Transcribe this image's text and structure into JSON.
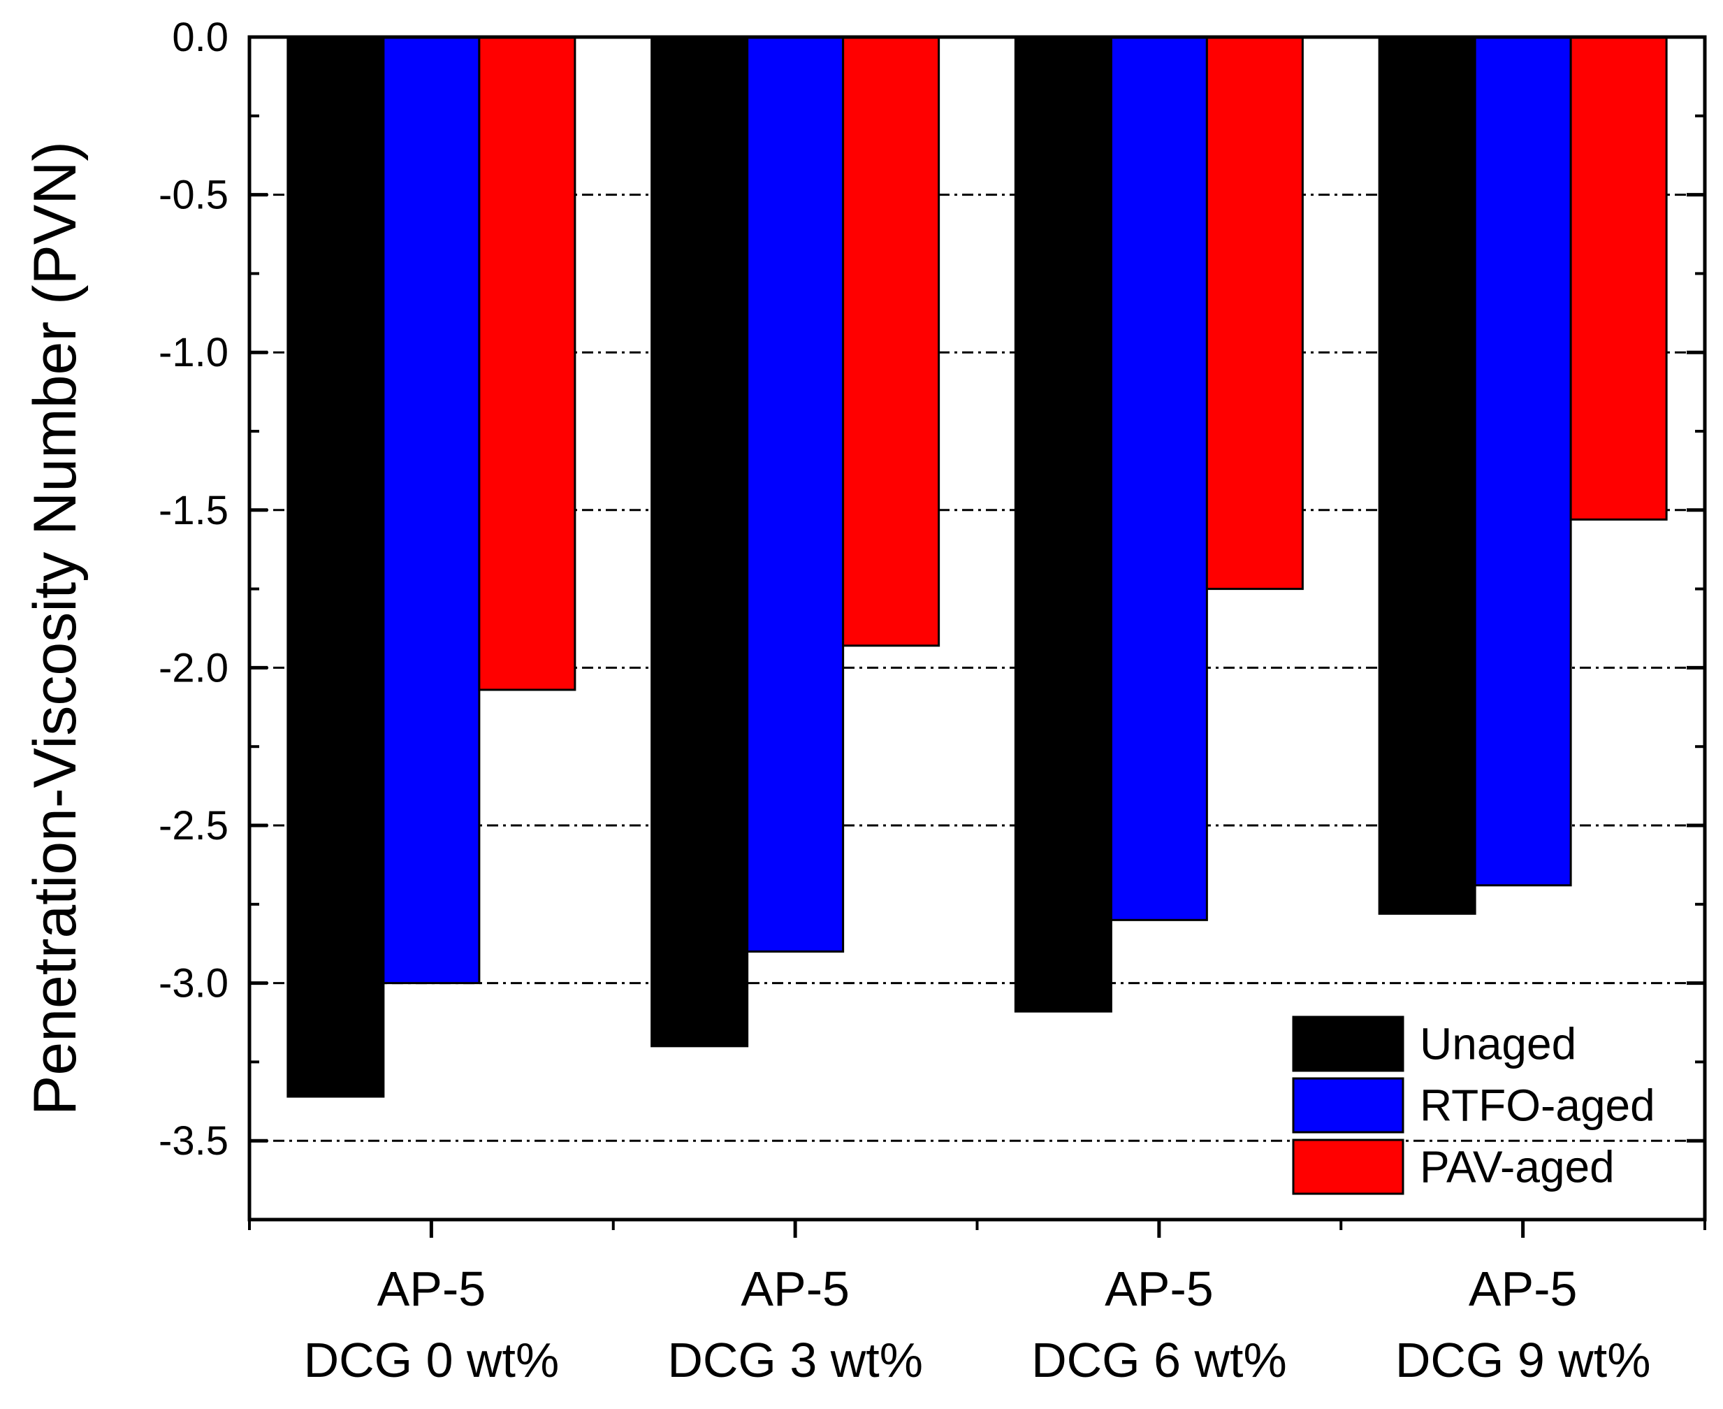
{
  "chart_data": {
    "type": "bar",
    "title": "",
    "xlabel": "",
    "ylabel": "Penetration-Viscosity Number (PVN)",
    "ylim": [
      -3.75,
      0.0
    ],
    "yticks": [
      0.0,
      -0.5,
      -1.0,
      -1.5,
      -2.0,
      -2.5,
      -3.0,
      -3.5
    ],
    "ytick_labels": [
      "0.0",
      "-0.5",
      "-1.0",
      "-1.5",
      "-2.0",
      "-2.5",
      "-3.0",
      "-3.5"
    ],
    "grid": "horizontal dash-dot",
    "legend_position": "bottom-right",
    "categories": [
      {
        "line1": "AP-5",
        "line2": "DCG 0 wt%"
      },
      {
        "line1": "AP-5",
        "line2": "DCG 3 wt%"
      },
      {
        "line1": "AP-5",
        "line2": "DCG 6 wt%"
      },
      {
        "line1": "AP-5",
        "line2": "DCG 9 wt%"
      }
    ],
    "series": [
      {
        "name": "Unaged",
        "color": "#000000",
        "values": [
          -3.36,
          -3.2,
          -3.09,
          -2.78
        ]
      },
      {
        "name": "RTFO-aged",
        "color": "#0000ff",
        "values": [
          -3.0,
          -2.9,
          -2.8,
          -2.69
        ]
      },
      {
        "name": "PAV-aged",
        "color": "#ff0000",
        "values": [
          -2.07,
          -1.93,
          -1.75,
          -1.53
        ]
      }
    ]
  }
}
